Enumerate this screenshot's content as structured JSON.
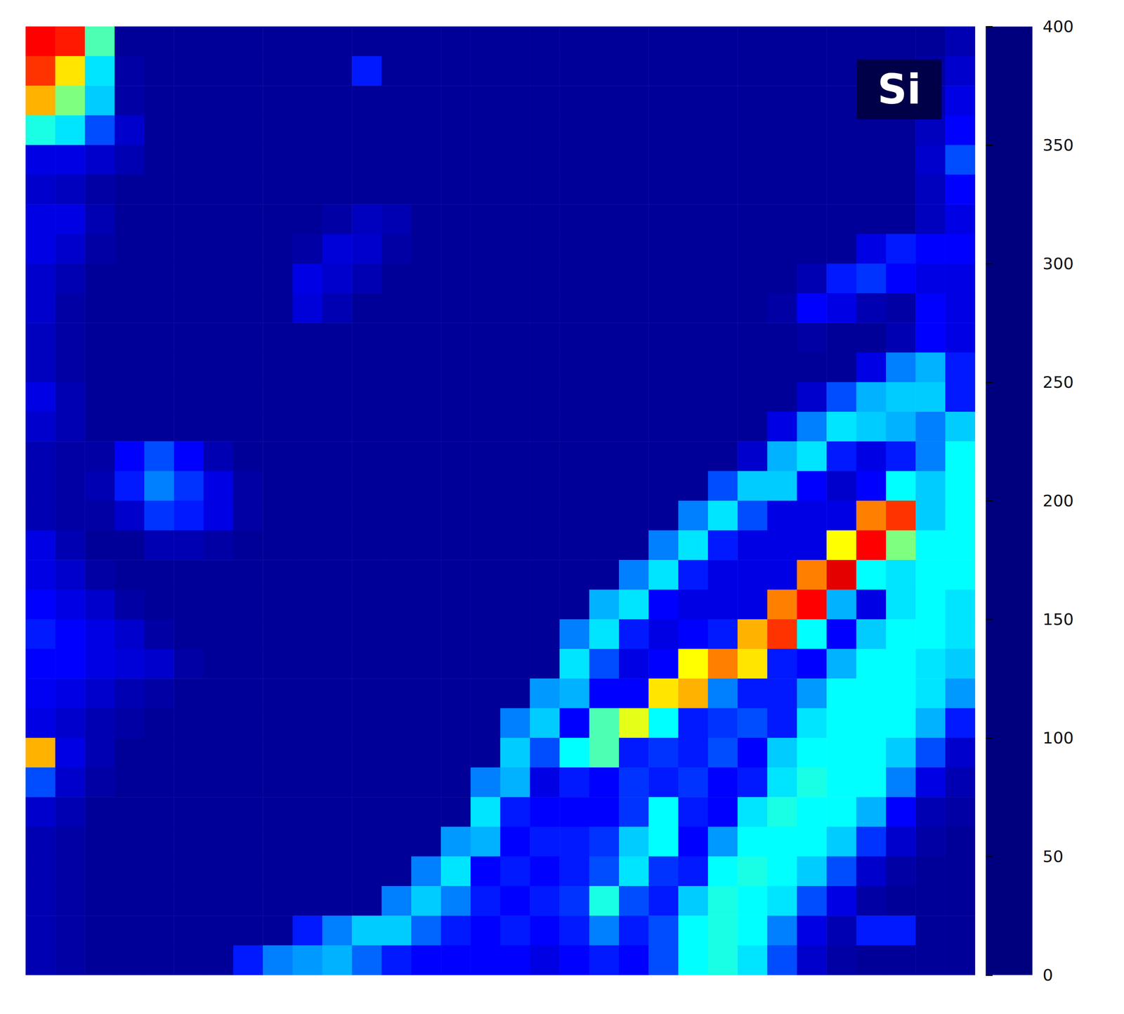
{
  "chart_data": {
    "type": "heatmap",
    "title": "Si",
    "tick_labels": false,
    "colorbar": {
      "range": [
        0,
        400
      ],
      "ticks": [
        0,
        50,
        100,
        150,
        200,
        250,
        300,
        350,
        400
      ]
    },
    "cells": [
      [
        350,
        340,
        180,
        10,
        10,
        10,
        10,
        10,
        10,
        10,
        10,
        10,
        10,
        10,
        10,
        10,
        10,
        10,
        10,
        10,
        10,
        10,
        10,
        10,
        10,
        10,
        10,
        10,
        10,
        10,
        10,
        20
      ],
      [
        330,
        260,
        140,
        15,
        10,
        10,
        10,
        10,
        10,
        10,
        10,
        60,
        10,
        10,
        10,
        10,
        10,
        10,
        10,
        10,
        10,
        10,
        10,
        10,
        10,
        10,
        10,
        10,
        10,
        10,
        15,
        30
      ],
      [
        280,
        200,
        130,
        15,
        10,
        10,
        10,
        10,
        10,
        10,
        10,
        10,
        10,
        10,
        10,
        10,
        10,
        10,
        10,
        10,
        10,
        10,
        10,
        10,
        10,
        10,
        10,
        10,
        10,
        10,
        20,
        40
      ],
      [
        160,
        140,
        80,
        30,
        10,
        10,
        10,
        10,
        10,
        10,
        10,
        10,
        10,
        10,
        10,
        10,
        10,
        10,
        10,
        10,
        10,
        10,
        10,
        10,
        10,
        10,
        10,
        10,
        10,
        10,
        25,
        50
      ],
      [
        40,
        40,
        30,
        20,
        10,
        10,
        10,
        10,
        10,
        10,
        10,
        10,
        10,
        10,
        10,
        10,
        10,
        10,
        10,
        10,
        10,
        10,
        10,
        10,
        10,
        10,
        10,
        10,
        10,
        10,
        30,
        80
      ],
      [
        30,
        25,
        15,
        10,
        10,
        10,
        10,
        10,
        10,
        10,
        10,
        10,
        10,
        10,
        10,
        10,
        10,
        10,
        10,
        10,
        10,
        10,
        10,
        10,
        10,
        10,
        10,
        10,
        10,
        10,
        25,
        50
      ],
      [
        40,
        40,
        20,
        10,
        10,
        10,
        10,
        10,
        10,
        10,
        15,
        25,
        20,
        10,
        10,
        10,
        10,
        10,
        10,
        10,
        10,
        10,
        10,
        10,
        10,
        10,
        10,
        10,
        10,
        10,
        25,
        40
      ],
      [
        40,
        30,
        15,
        10,
        10,
        10,
        10,
        10,
        10,
        15,
        35,
        30,
        15,
        10,
        10,
        10,
        10,
        10,
        10,
        10,
        10,
        10,
        10,
        10,
        10,
        10,
        10,
        10,
        40,
        60,
        50,
        50
      ],
      [
        30,
        20,
        10,
        10,
        10,
        10,
        10,
        10,
        10,
        40,
        30,
        20,
        10,
        10,
        10,
        10,
        10,
        10,
        10,
        10,
        10,
        10,
        10,
        10,
        10,
        10,
        20,
        60,
        70,
        50,
        40,
        40
      ],
      [
        30,
        15,
        10,
        10,
        10,
        10,
        10,
        10,
        10,
        35,
        20,
        10,
        10,
        10,
        10,
        10,
        10,
        10,
        10,
        10,
        10,
        10,
        10,
        10,
        10,
        15,
        50,
        40,
        20,
        15,
        50,
        40
      ],
      [
        25,
        15,
        10,
        10,
        10,
        10,
        10,
        10,
        10,
        10,
        10,
        10,
        10,
        10,
        10,
        10,
        10,
        10,
        10,
        10,
        10,
        10,
        10,
        10,
        10,
        10,
        15,
        10,
        10,
        20,
        50,
        40
      ],
      [
        25,
        15,
        10,
        10,
        10,
        10,
        10,
        10,
        10,
        10,
        10,
        10,
        10,
        10,
        10,
        10,
        10,
        10,
        10,
        10,
        10,
        10,
        10,
        10,
        10,
        10,
        10,
        10,
        40,
        100,
        120,
        60
      ],
      [
        40,
        20,
        10,
        10,
        10,
        10,
        10,
        10,
        10,
        10,
        10,
        10,
        10,
        10,
        10,
        10,
        10,
        10,
        10,
        10,
        10,
        10,
        10,
        10,
        10,
        10,
        30,
        80,
        120,
        130,
        130,
        60
      ],
      [
        30,
        20,
        10,
        10,
        10,
        10,
        10,
        10,
        10,
        10,
        10,
        10,
        10,
        10,
        10,
        10,
        10,
        10,
        10,
        10,
        10,
        10,
        10,
        10,
        10,
        40,
        100,
        140,
        130,
        120,
        100,
        130
      ],
      [
        20,
        15,
        15,
        50,
        80,
        50,
        20,
        10,
        10,
        10,
        10,
        10,
        10,
        10,
        10,
        10,
        10,
        10,
        10,
        10,
        10,
        10,
        10,
        10,
        30,
        120,
        140,
        60,
        40,
        60,
        100,
        150
      ],
      [
        20,
        15,
        20,
        60,
        100,
        70,
        40,
        15,
        10,
        10,
        10,
        10,
        10,
        10,
        10,
        10,
        10,
        10,
        10,
        10,
        10,
        10,
        10,
        80,
        130,
        130,
        50,
        30,
        50,
        150,
        130,
        150
      ],
      [
        20,
        15,
        15,
        30,
        70,
        60,
        40,
        15,
        10,
        10,
        10,
        10,
        10,
        10,
        10,
        10,
        10,
        10,
        10,
        10,
        10,
        10,
        100,
        140,
        80,
        40,
        40,
        40,
        300,
        330,
        130,
        150
      ],
      [
        40,
        20,
        10,
        10,
        20,
        20,
        15,
        10,
        10,
        10,
        10,
        10,
        10,
        10,
        10,
        10,
        10,
        10,
        10,
        10,
        10,
        100,
        140,
        60,
        40,
        40,
        40,
        250,
        350,
        200,
        150,
        150
      ],
      [
        40,
        30,
        15,
        10,
        10,
        10,
        10,
        10,
        10,
        10,
        10,
        10,
        10,
        10,
        10,
        10,
        10,
        10,
        10,
        10,
        100,
        140,
        60,
        40,
        40,
        40,
        300,
        360,
        150,
        140,
        150,
        150
      ],
      [
        50,
        40,
        30,
        15,
        10,
        10,
        10,
        10,
        10,
        10,
        10,
        10,
        10,
        10,
        10,
        10,
        10,
        10,
        10,
        120,
        140,
        50,
        40,
        40,
        40,
        300,
        350,
        120,
        40,
        140,
        150,
        140
      ],
      [
        60,
        50,
        40,
        30,
        15,
        10,
        10,
        10,
        10,
        10,
        10,
        10,
        10,
        10,
        10,
        10,
        10,
        10,
        100,
        140,
        60,
        40,
        50,
        60,
        280,
        330,
        150,
        50,
        130,
        150,
        150,
        140
      ],
      [
        50,
        50,
        40,
        35,
        30,
        15,
        10,
        10,
        10,
        10,
        10,
        10,
        10,
        10,
        10,
        10,
        10,
        10,
        140,
        80,
        40,
        50,
        250,
        300,
        260,
        60,
        50,
        120,
        150,
        150,
        140,
        130
      ],
      [
        45,
        40,
        30,
        20,
        15,
        10,
        10,
        10,
        10,
        10,
        10,
        10,
        10,
        10,
        10,
        10,
        10,
        110,
        120,
        50,
        50,
        260,
        280,
        100,
        60,
        60,
        110,
        150,
        150,
        150,
        140,
        110
      ],
      [
        40,
        30,
        20,
        15,
        10,
        10,
        10,
        10,
        10,
        10,
        10,
        10,
        10,
        10,
        10,
        10,
        100,
        130,
        50,
        180,
        240,
        150,
        60,
        70,
        80,
        60,
        140,
        150,
        150,
        150,
        120,
        60
      ],
      [
        280,
        40,
        20,
        10,
        10,
        10,
        10,
        10,
        10,
        10,
        10,
        10,
        10,
        10,
        10,
        10,
        130,
        80,
        150,
        180,
        60,
        70,
        60,
        80,
        50,
        130,
        150,
        150,
        150,
        130,
        80,
        30
      ],
      [
        80,
        30,
        15,
        10,
        10,
        10,
        10,
        10,
        10,
        10,
        10,
        10,
        10,
        10,
        10,
        100,
        120,
        40,
        60,
        50,
        70,
        60,
        70,
        50,
        60,
        140,
        160,
        150,
        150,
        100,
        40,
        20
      ],
      [
        30,
        20,
        10,
        10,
        10,
        10,
        10,
        10,
        10,
        10,
        10,
        10,
        10,
        10,
        10,
        140,
        60,
        50,
        50,
        50,
        70,
        150,
        60,
        50,
        140,
        160,
        150,
        150,
        120,
        50,
        20,
        15
      ],
      [
        20,
        15,
        10,
        10,
        10,
        10,
        10,
        10,
        10,
        10,
        10,
        10,
        10,
        10,
        110,
        120,
        50,
        60,
        60,
        70,
        130,
        150,
        50,
        110,
        150,
        150,
        150,
        130,
        70,
        30,
        15,
        10
      ],
      [
        20,
        15,
        10,
        10,
        10,
        10,
        10,
        10,
        10,
        10,
        10,
        10,
        10,
        100,
        140,
        50,
        60,
        50,
        60,
        80,
        140,
        70,
        60,
        150,
        160,
        150,
        130,
        80,
        30,
        15,
        10,
        10
      ],
      [
        20,
        15,
        10,
        10,
        10,
        10,
        10,
        10,
        10,
        10,
        10,
        10,
        100,
        130,
        100,
        60,
        50,
        60,
        70,
        160,
        80,
        60,
        130,
        160,
        150,
        140,
        80,
        40,
        15,
        10,
        10,
        10
      ],
      [
        20,
        15,
        10,
        10,
        10,
        10,
        10,
        10,
        10,
        60,
        100,
        130,
        130,
        90,
        60,
        50,
        60,
        50,
        60,
        100,
        60,
        80,
        150,
        160,
        150,
        100,
        40,
        20,
        60,
        60,
        10,
        10
      ],
      [
        20,
        15,
        10,
        10,
        10,
        10,
        10,
        60,
        100,
        110,
        120,
        90,
        60,
        50,
        50,
        50,
        50,
        40,
        50,
        60,
        50,
        80,
        150,
        160,
        140,
        80,
        30,
        15,
        10,
        10,
        10,
        10
      ]
    ]
  }
}
